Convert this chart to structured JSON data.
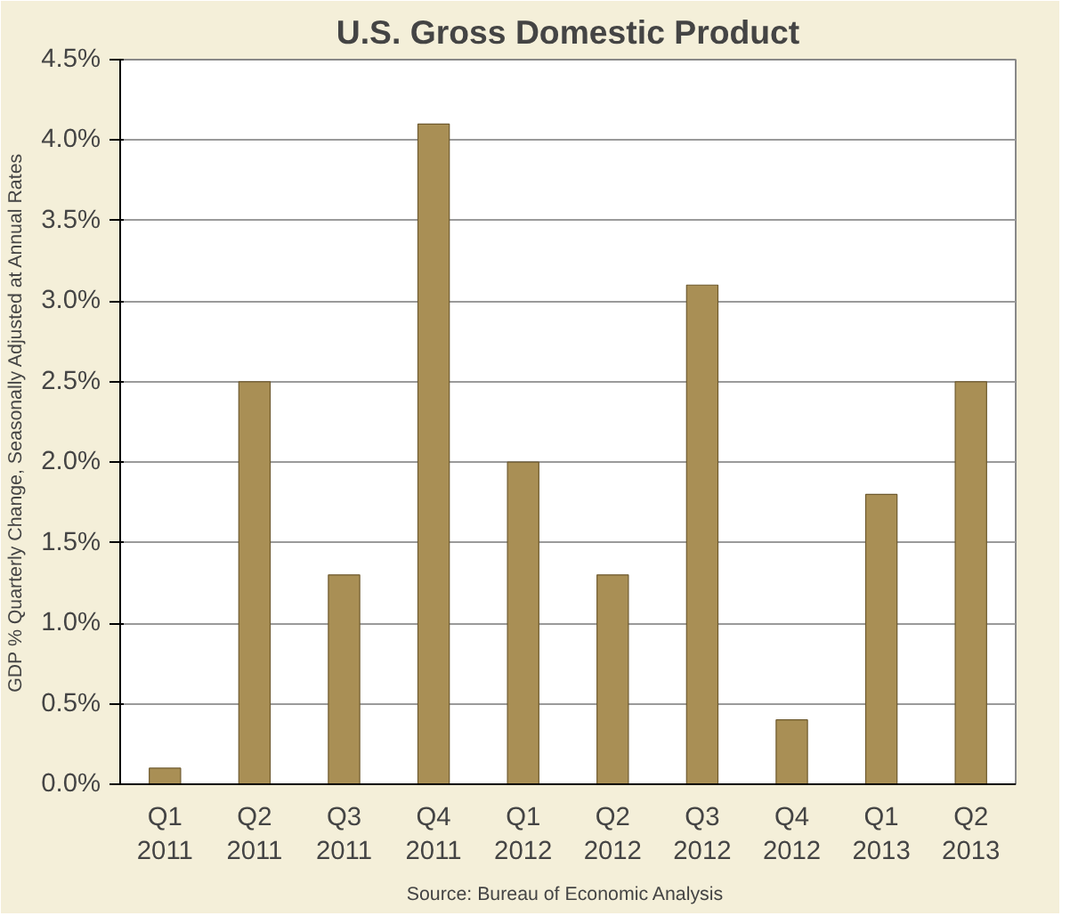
{
  "chart_data": {
    "type": "bar",
    "title": "U.S. Gross Domestic Product",
    "ylabel": "GDP % Quarterly Change, Seasonally Adjusted at Annual Rates",
    "categories": [
      "Q1\n2011",
      "Q2\n2011",
      "Q3\n2011",
      "Q4\n2011",
      "Q1\n2012",
      "Q2\n2012",
      "Q3\n2012",
      "Q4\n2012",
      "Q1\n2013",
      "Q2\n2013"
    ],
    "values": [
      0.1,
      2.5,
      1.3,
      4.1,
      2.0,
      1.3,
      3.1,
      0.4,
      1.8,
      2.5
    ],
    "color": "#a98f55",
    "ylim": [
      0,
      4.5
    ],
    "yticks": [
      {
        "value": 0,
        "label": "0.0%"
      },
      {
        "value": 0.5,
        "label": "0.5%"
      },
      {
        "value": 1,
        "label": "1.0%"
      },
      {
        "value": 1.5,
        "label": "1.5%"
      },
      {
        "value": 2,
        "label": "2.0%"
      },
      {
        "value": 2.5,
        "label": "2.5%"
      },
      {
        "value": 3,
        "label": "3.0%"
      },
      {
        "value": 3.5,
        "label": "3.5%"
      },
      {
        "value": 4,
        "label": "4.0%"
      },
      {
        "value": 4.5,
        "label": "4.5%"
      }
    ],
    "grid": "y",
    "annotations": [
      "Source:  Bureau of Economic Analysis"
    ]
  }
}
